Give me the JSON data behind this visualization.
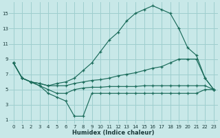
{
  "xlabel": "Humidex (Indice chaleur)",
  "bg_color": "#c8e8e8",
  "grid_color": "#9ecece",
  "line_color": "#1a6b5a",
  "xlim_min": -0.5,
  "xlim_max": 23.5,
  "ylim_min": 0.5,
  "ylim_max": 16.5,
  "xtick_vals": [
    0,
    1,
    2,
    3,
    4,
    5,
    6,
    7,
    8,
    9,
    10,
    11,
    12,
    13,
    14,
    15,
    16,
    17,
    18,
    19,
    20,
    21,
    22,
    23
  ],
  "ytick_vals": [
    1,
    3,
    5,
    7,
    9,
    11,
    13,
    15
  ],
  "curves": [
    {
      "x": [
        0,
        1,
        2,
        3,
        4,
        5,
        6,
        7,
        8,
        9,
        10,
        11,
        12,
        13,
        14,
        15,
        16,
        17,
        18,
        19,
        20,
        21,
        22,
        23
      ],
      "y": [
        8.5,
        6.5,
        6.0,
        5.8,
        5.5,
        5.8,
        6.0,
        6.5,
        7.5,
        8.5,
        10.0,
        11.5,
        12.5,
        14.0,
        15.0,
        15.5,
        16.0,
        15.5,
        15.0,
        13.0,
        10.5,
        9.5,
        6.5,
        5.0
      ]
    },
    {
      "x": [
        0,
        1,
        2,
        3,
        4,
        5,
        6,
        7,
        8,
        9,
        10,
        11,
        12,
        13,
        14,
        15,
        16,
        17,
        18,
        19,
        20,
        21,
        22,
        23
      ],
      "y": [
        8.5,
        6.5,
        6.0,
        5.8,
        5.5,
        5.5,
        5.5,
        5.8,
        6.0,
        6.2,
        6.3,
        6.5,
        6.8,
        7.0,
        7.2,
        7.5,
        7.8,
        8.0,
        8.5,
        9.0,
        9.0,
        9.0,
        6.5,
        5.0
      ]
    },
    {
      "x": [
        0,
        1,
        2,
        3,
        4,
        5,
        6,
        7,
        8,
        9,
        10,
        11,
        12,
        13,
        14,
        15,
        16,
        17,
        18,
        19,
        20,
        21,
        22,
        23
      ],
      "y": [
        8.5,
        6.5,
        6.0,
        5.5,
        5.0,
        4.5,
        4.5,
        5.0,
        5.2,
        5.3,
        5.3,
        5.4,
        5.4,
        5.4,
        5.4,
        5.5,
        5.5,
        5.5,
        5.5,
        5.5,
        5.5,
        5.5,
        5.5,
        5.0
      ]
    },
    {
      "x": [
        0,
        1,
        2,
        3,
        4,
        5,
        6,
        7,
        8,
        9,
        10,
        11,
        12,
        13,
        14,
        15,
        16,
        17,
        18,
        19,
        20,
        21,
        22,
        23
      ],
      "y": [
        8.5,
        6.5,
        6.0,
        5.5,
        4.5,
        4.0,
        3.5,
        1.5,
        1.5,
        4.5,
        4.5,
        4.5,
        4.5,
        4.5,
        4.5,
        4.5,
        4.5,
        4.5,
        4.5,
        4.5,
        4.5,
        4.5,
        5.0,
        5.0
      ]
    }
  ]
}
